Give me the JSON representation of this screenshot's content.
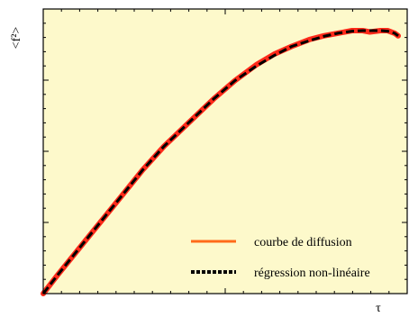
{
  "chart_data": {
    "type": "line",
    "xlabel": "τ",
    "ylabel": "<f²>",
    "xlim": [
      0,
      1
    ],
    "ylim": [
      0,
      1
    ],
    "plot_background": "#fdf9cb",
    "grid": false,
    "tick_labels_shown": false,
    "legend_position": "bottom-right",
    "series": [
      {
        "name": "courbe de diffusion",
        "color": "#ff2a1a",
        "legend_color": "#ff6a1a",
        "style": "solid",
        "x": [
          0,
          0.04,
          0.1,
          0.16,
          0.22,
          0.28,
          0.34,
          0.41,
          0.48,
          0.54,
          0.6,
          0.65,
          0.7,
          0.75,
          0.79,
          0.83,
          0.87,
          0.9,
          0.92,
          0.95,
          0.97,
          0.99,
          1.0
        ],
        "y": [
          0,
          0.07,
          0.17,
          0.27,
          0.37,
          0.47,
          0.56,
          0.65,
          0.74,
          0.81,
          0.87,
          0.91,
          0.94,
          0.966,
          0.98,
          0.99,
          1.0,
          1.0,
          0.995,
          1.0,
          1.0,
          0.99,
          0.98
        ]
      },
      {
        "name": "régression non-linéaire",
        "color": "#000000",
        "style": "dashed",
        "x": [
          0,
          0.04,
          0.1,
          0.16,
          0.22,
          0.28,
          0.34,
          0.41,
          0.48,
          0.54,
          0.6,
          0.65,
          0.7,
          0.75,
          0.79,
          0.83,
          0.87,
          0.9,
          0.92,
          0.95,
          0.97,
          0.99,
          1.0
        ],
        "y": [
          0,
          0.07,
          0.17,
          0.27,
          0.37,
          0.47,
          0.56,
          0.65,
          0.74,
          0.81,
          0.865,
          0.905,
          0.94,
          0.962,
          0.978,
          0.99,
          0.998,
          1.0,
          1.0,
          1.0,
          0.998,
          0.99,
          0.98
        ]
      }
    ]
  }
}
